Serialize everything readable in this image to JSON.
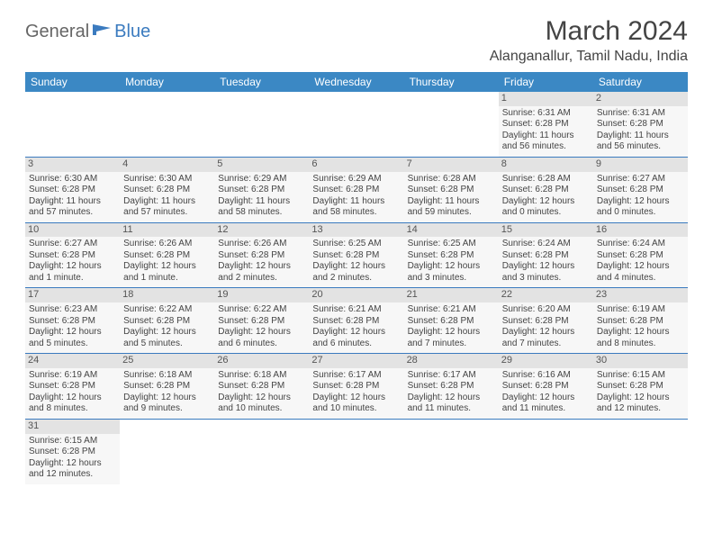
{
  "logo": {
    "part1": "General",
    "part2": "Blue"
  },
  "title": "March 2024",
  "location": "Alanganallur, Tamil Nadu, India",
  "colors": {
    "header_bg": "#3b88c4",
    "header_fg": "#ffffff",
    "daynum_bg": "#e3e3e3",
    "cell_bg": "#f7f7f7",
    "rule": "#3b7bbf",
    "logo_blue": "#3b7bbf"
  },
  "fonts": {
    "title_size": 30,
    "location_size": 16,
    "header_size": 12,
    "cell_size": 10
  },
  "day_headers": [
    "Sunday",
    "Monday",
    "Tuesday",
    "Wednesday",
    "Thursday",
    "Friday",
    "Saturday"
  ],
  "weeks": [
    [
      null,
      null,
      null,
      null,
      null,
      {
        "n": "1",
        "sr": "Sunrise: 6:31 AM",
        "ss": "Sunset: 6:28 PM",
        "dl": "Daylight: 11 hours and 56 minutes."
      },
      {
        "n": "2",
        "sr": "Sunrise: 6:31 AM",
        "ss": "Sunset: 6:28 PM",
        "dl": "Daylight: 11 hours and 56 minutes."
      }
    ],
    [
      {
        "n": "3",
        "sr": "Sunrise: 6:30 AM",
        "ss": "Sunset: 6:28 PM",
        "dl": "Daylight: 11 hours and 57 minutes."
      },
      {
        "n": "4",
        "sr": "Sunrise: 6:30 AM",
        "ss": "Sunset: 6:28 PM",
        "dl": "Daylight: 11 hours and 57 minutes."
      },
      {
        "n": "5",
        "sr": "Sunrise: 6:29 AM",
        "ss": "Sunset: 6:28 PM",
        "dl": "Daylight: 11 hours and 58 minutes."
      },
      {
        "n": "6",
        "sr": "Sunrise: 6:29 AM",
        "ss": "Sunset: 6:28 PM",
        "dl": "Daylight: 11 hours and 58 minutes."
      },
      {
        "n": "7",
        "sr": "Sunrise: 6:28 AM",
        "ss": "Sunset: 6:28 PM",
        "dl": "Daylight: 11 hours and 59 minutes."
      },
      {
        "n": "8",
        "sr": "Sunrise: 6:28 AM",
        "ss": "Sunset: 6:28 PM",
        "dl": "Daylight: 12 hours and 0 minutes."
      },
      {
        "n": "9",
        "sr": "Sunrise: 6:27 AM",
        "ss": "Sunset: 6:28 PM",
        "dl": "Daylight: 12 hours and 0 minutes."
      }
    ],
    [
      {
        "n": "10",
        "sr": "Sunrise: 6:27 AM",
        "ss": "Sunset: 6:28 PM",
        "dl": "Daylight: 12 hours and 1 minute."
      },
      {
        "n": "11",
        "sr": "Sunrise: 6:26 AM",
        "ss": "Sunset: 6:28 PM",
        "dl": "Daylight: 12 hours and 1 minute."
      },
      {
        "n": "12",
        "sr": "Sunrise: 6:26 AM",
        "ss": "Sunset: 6:28 PM",
        "dl": "Daylight: 12 hours and 2 minutes."
      },
      {
        "n": "13",
        "sr": "Sunrise: 6:25 AM",
        "ss": "Sunset: 6:28 PM",
        "dl": "Daylight: 12 hours and 2 minutes."
      },
      {
        "n": "14",
        "sr": "Sunrise: 6:25 AM",
        "ss": "Sunset: 6:28 PM",
        "dl": "Daylight: 12 hours and 3 minutes."
      },
      {
        "n": "15",
        "sr": "Sunrise: 6:24 AM",
        "ss": "Sunset: 6:28 PM",
        "dl": "Daylight: 12 hours and 3 minutes."
      },
      {
        "n": "16",
        "sr": "Sunrise: 6:24 AM",
        "ss": "Sunset: 6:28 PM",
        "dl": "Daylight: 12 hours and 4 minutes."
      }
    ],
    [
      {
        "n": "17",
        "sr": "Sunrise: 6:23 AM",
        "ss": "Sunset: 6:28 PM",
        "dl": "Daylight: 12 hours and 5 minutes."
      },
      {
        "n": "18",
        "sr": "Sunrise: 6:22 AM",
        "ss": "Sunset: 6:28 PM",
        "dl": "Daylight: 12 hours and 5 minutes."
      },
      {
        "n": "19",
        "sr": "Sunrise: 6:22 AM",
        "ss": "Sunset: 6:28 PM",
        "dl": "Daylight: 12 hours and 6 minutes."
      },
      {
        "n": "20",
        "sr": "Sunrise: 6:21 AM",
        "ss": "Sunset: 6:28 PM",
        "dl": "Daylight: 12 hours and 6 minutes."
      },
      {
        "n": "21",
        "sr": "Sunrise: 6:21 AM",
        "ss": "Sunset: 6:28 PM",
        "dl": "Daylight: 12 hours and 7 minutes."
      },
      {
        "n": "22",
        "sr": "Sunrise: 6:20 AM",
        "ss": "Sunset: 6:28 PM",
        "dl": "Daylight: 12 hours and 7 minutes."
      },
      {
        "n": "23",
        "sr": "Sunrise: 6:19 AM",
        "ss": "Sunset: 6:28 PM",
        "dl": "Daylight: 12 hours and 8 minutes."
      }
    ],
    [
      {
        "n": "24",
        "sr": "Sunrise: 6:19 AM",
        "ss": "Sunset: 6:28 PM",
        "dl": "Daylight: 12 hours and 8 minutes."
      },
      {
        "n": "25",
        "sr": "Sunrise: 6:18 AM",
        "ss": "Sunset: 6:28 PM",
        "dl": "Daylight: 12 hours and 9 minutes."
      },
      {
        "n": "26",
        "sr": "Sunrise: 6:18 AM",
        "ss": "Sunset: 6:28 PM",
        "dl": "Daylight: 12 hours and 10 minutes."
      },
      {
        "n": "27",
        "sr": "Sunrise: 6:17 AM",
        "ss": "Sunset: 6:28 PM",
        "dl": "Daylight: 12 hours and 10 minutes."
      },
      {
        "n": "28",
        "sr": "Sunrise: 6:17 AM",
        "ss": "Sunset: 6:28 PM",
        "dl": "Daylight: 12 hours and 11 minutes."
      },
      {
        "n": "29",
        "sr": "Sunrise: 6:16 AM",
        "ss": "Sunset: 6:28 PM",
        "dl": "Daylight: 12 hours and 11 minutes."
      },
      {
        "n": "30",
        "sr": "Sunrise: 6:15 AM",
        "ss": "Sunset: 6:28 PM",
        "dl": "Daylight: 12 hours and 12 minutes."
      }
    ],
    [
      {
        "n": "31",
        "sr": "Sunrise: 6:15 AM",
        "ss": "Sunset: 6:28 PM",
        "dl": "Daylight: 12 hours and 12 minutes."
      },
      null,
      null,
      null,
      null,
      null,
      null
    ]
  ]
}
